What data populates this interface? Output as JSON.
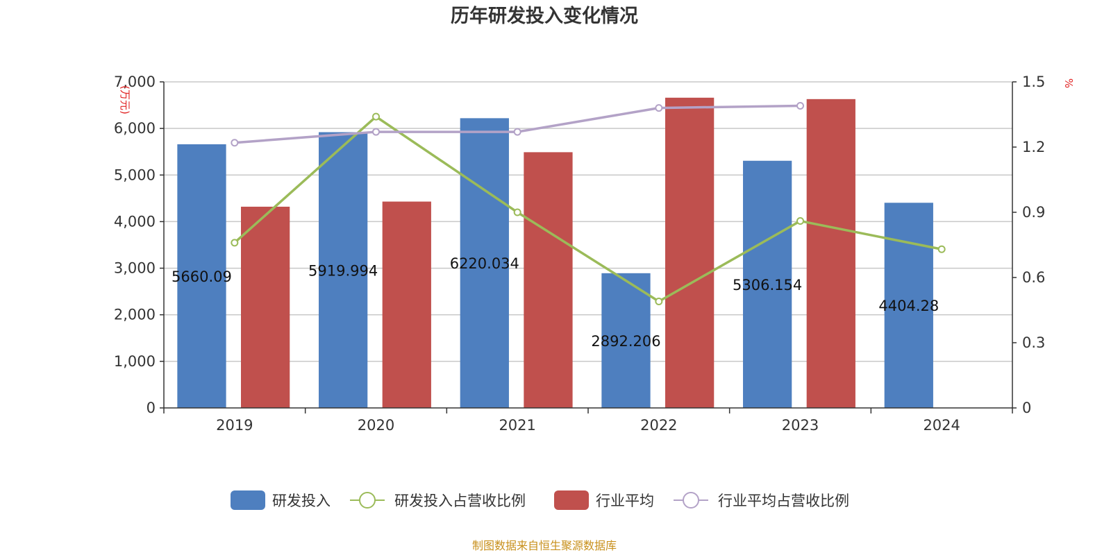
{
  "chart_data": {
    "type": "bar",
    "title": "历年研发投入变化情况",
    "categories": [
      "2019",
      "2020",
      "2021",
      "2022",
      "2023",
      "2024"
    ],
    "y_left": {
      "unit": "万元",
      "min": 0,
      "max": 7000,
      "ticks": [
        "0",
        "1,000",
        "2,000",
        "3,000",
        "4,000",
        "5,000",
        "6,000",
        "7,000"
      ],
      "tick_values": [
        0,
        1000,
        2000,
        3000,
        4000,
        5000,
        6000,
        7000
      ]
    },
    "y_right": {
      "unit": "%",
      "min": 0,
      "max": 1.5,
      "ticks": [
        "0",
        "0.3",
        "0.6",
        "0.9",
        "1.2",
        "1.5"
      ],
      "tick_values": [
        0,
        0.3,
        0.6,
        0.9,
        1.2,
        1.5
      ]
    },
    "grid": true,
    "legend_position": "bottom",
    "series": [
      {
        "name": "研发投入",
        "type": "bar",
        "axis": "left",
        "color": "#4e7fbf",
        "values": [
          5660.09,
          5919.994,
          6220.034,
          2892.206,
          5306.154,
          4404.28
        ],
        "labels": [
          "5660.09",
          "5919.994",
          "6220.034",
          "2892.206",
          "5306.154",
          "4404.28"
        ]
      },
      {
        "name": "研发投入占营收比例",
        "type": "line",
        "axis": "right",
        "color": "#9bbb59",
        "values": [
          0.76,
          1.34,
          0.9,
          0.49,
          0.86,
          0.73
        ]
      },
      {
        "name": "行业平均",
        "type": "bar",
        "axis": "left",
        "color": "#c0504d",
        "values": [
          4320,
          4430,
          5490,
          6660,
          6630,
          null
        ]
      },
      {
        "name": "行业平均占营收比例",
        "type": "line",
        "axis": "right",
        "color": "#b3a2c7",
        "values": [
          1.22,
          1.27,
          1.27,
          1.38,
          1.39,
          null
        ]
      }
    ],
    "source": "制图数据来自恒生聚源数据库"
  }
}
